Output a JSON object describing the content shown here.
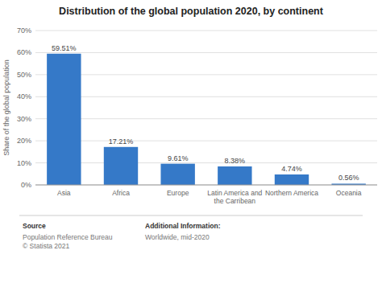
{
  "chart_data": {
    "type": "bar",
    "title": "Distribution of the global population 2020, by continent",
    "categories": [
      "Asia",
      "Africa",
      "Europe",
      "Latin America and\nthe Carribean",
      "Northern America",
      "Oceania"
    ],
    "values": [
      59.51,
      17.21,
      9.61,
      8.38,
      4.74,
      0.56
    ],
    "value_labels": [
      "59.51%",
      "17.21%",
      "9.61%",
      "8.38%",
      "4.74%",
      "0.56%"
    ],
    "data_labels": true,
    "color": "#3579c8",
    "ylabel": "Share of the global population",
    "ylim": [
      0,
      70
    ],
    "yticks": [
      {
        "value": 0,
        "label": "0%"
      },
      {
        "value": 10,
        "label": "10%"
      },
      {
        "value": 20,
        "label": "20%"
      },
      {
        "value": 30,
        "label": "30%"
      },
      {
        "value": 40,
        "label": "40%"
      },
      {
        "value": 50,
        "label": "50%"
      },
      {
        "value": 60,
        "label": "60%"
      },
      {
        "value": 70,
        "label": "70%"
      }
    ],
    "grid": true,
    "annotations": [
      "Source",
      "Population Reference Bureau\n© Statista 2021",
      "Additional Information:",
      "Worldwide, mid-2020"
    ]
  }
}
